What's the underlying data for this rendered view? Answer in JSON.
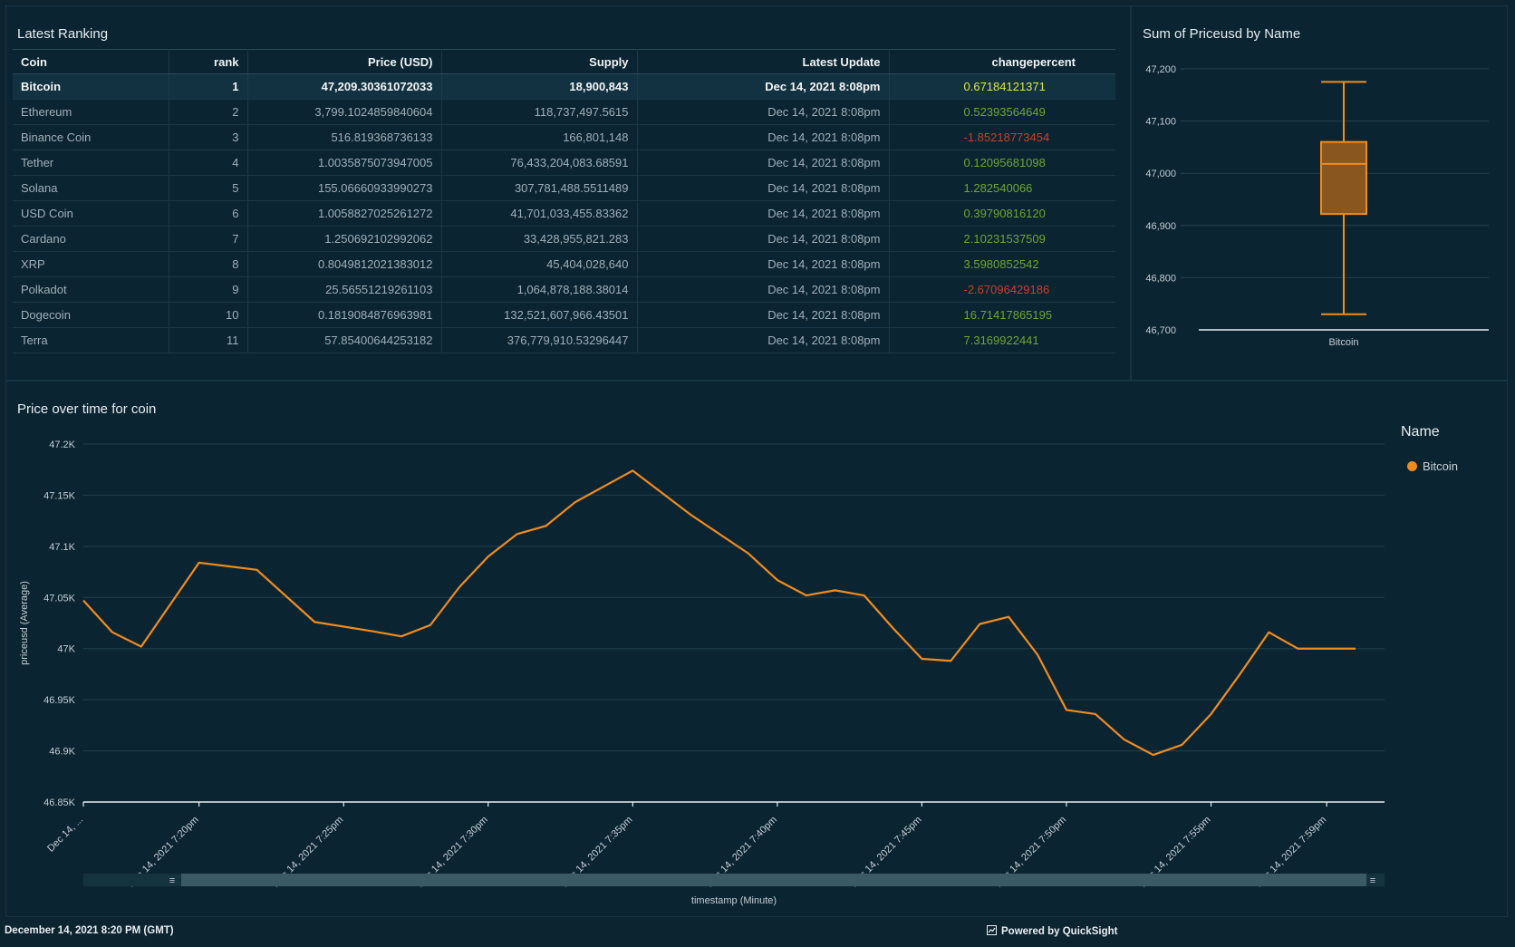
{
  "colors": {
    "accent": "#f08c1e",
    "positive": "#6fa534",
    "negative": "#c7412b",
    "highlight": "#d7e83b"
  },
  "table_panel": {
    "title": "Latest Ranking",
    "columns": [
      "Coin",
      "rank",
      "Price (USD)",
      "Supply",
      "Latest Update",
      "changepercent"
    ],
    "rows": [
      {
        "coin": "Bitcoin",
        "rank": "1",
        "price": "47,209.30361072033",
        "supply": "18,900,843",
        "updated": "Dec 14, 2021 8:08pm",
        "change": "0.67184121371",
        "dir": "pos"
      },
      {
        "coin": "Ethereum",
        "rank": "2",
        "price": "3,799.1024859840604",
        "supply": "118,737,497.5615",
        "updated": "Dec 14, 2021 8:08pm",
        "change": "0.52393564649",
        "dir": "pos"
      },
      {
        "coin": "Binance Coin",
        "rank": "3",
        "price": "516.819368736133",
        "supply": "166,801,148",
        "updated": "Dec 14, 2021 8:08pm",
        "change": "-1.85218773454",
        "dir": "neg"
      },
      {
        "coin": "Tether",
        "rank": "4",
        "price": "1.0035875073947005",
        "supply": "76,433,204,083.68591",
        "updated": "Dec 14, 2021 8:08pm",
        "change": "0.12095681098",
        "dir": "pos"
      },
      {
        "coin": "Solana",
        "rank": "5",
        "price": "155.06660933990273",
        "supply": "307,781,488.5511489",
        "updated": "Dec 14, 2021 8:08pm",
        "change": "1.282540066",
        "dir": "pos"
      },
      {
        "coin": "USD Coin",
        "rank": "6",
        "price": "1.0058827025261272",
        "supply": "41,701,033,455.83362",
        "updated": "Dec 14, 2021 8:08pm",
        "change": "0.39790816120",
        "dir": "pos"
      },
      {
        "coin": "Cardano",
        "rank": "7",
        "price": "1.250692102992062",
        "supply": "33,428,955,821.283",
        "updated": "Dec 14, 2021 8:08pm",
        "change": "2.10231537509",
        "dir": "pos"
      },
      {
        "coin": "XRP",
        "rank": "8",
        "price": "0.8049812021383012",
        "supply": "45,404,028,640",
        "updated": "Dec 14, 2021 8:08pm",
        "change": "3.5980852542",
        "dir": "pos"
      },
      {
        "coin": "Polkadot",
        "rank": "9",
        "price": "25.56551219261103",
        "supply": "1,064,878,188.38014",
        "updated": "Dec 14, 2021 8:08pm",
        "change": "-2.67096429186",
        "dir": "neg"
      },
      {
        "coin": "Dogecoin",
        "rank": "10",
        "price": "0.1819084876963981",
        "supply": "132,521,607,966.43501",
        "updated": "Dec 14, 2021 8:08pm",
        "change": "16.71417865195",
        "dir": "pos"
      },
      {
        "coin": "Terra",
        "rank": "11",
        "price": "57.85400644253182",
        "supply": "376,779,910.53296447",
        "updated": "Dec 14, 2021 8:08pm",
        "change": "7.3169922441",
        "dir": "pos"
      }
    ]
  },
  "box_panel": {
    "title": "Sum of Priceusd by Name"
  },
  "line_panel": {
    "title": "Price over time for coin"
  },
  "legend": {
    "title": "Name",
    "item": "Bitcoin"
  },
  "footer": {
    "timestamp": "December 14, 2021 8:20 PM (GMT)",
    "powered_by": "Powered by QuickSight"
  },
  "chart_data": [
    {
      "type": "box",
      "title": "Sum of Priceusd by Name",
      "categories": [
        "Bitcoin"
      ],
      "min": 46730,
      "q1": 46922,
      "median": 47018,
      "q3": 47060,
      "max": 47175,
      "ylim": [
        46700,
        47200
      ],
      "yticks": [
        46700,
        46800,
        46900,
        47000,
        47100,
        47200
      ],
      "ytick_labels": [
        "46,700",
        "46,800",
        "46,900",
        "47,000",
        "47,100",
        "47,200"
      ],
      "grid": true
    },
    {
      "type": "line",
      "title": "Price over time for coin",
      "xlabel": "timestamp (Minute)",
      "ylabel": "priceusd (Average)",
      "ylim": [
        46850,
        47200
      ],
      "yticks": [
        46850,
        46900,
        46950,
        47000,
        47050,
        47100,
        47150,
        47200
      ],
      "ytick_labels": [
        "46.85K",
        "46.9K",
        "46.95K",
        "47K",
        "47.05K",
        "47.1K",
        "47.15K",
        "47.2K"
      ],
      "xlim": [
        "7:16pm",
        "7:61pm"
      ],
      "xticks": [
        {
          "t": "7:16pm",
          "label": "Dec 14, ..."
        },
        {
          "t": "7:20pm",
          "label": "Dec 14, 2021 7:20pm"
        },
        {
          "t": "7:25pm",
          "label": "Dec 14, 2021 7:25pm"
        },
        {
          "t": "7:30pm",
          "label": "Dec 14, 2021 7:30pm"
        },
        {
          "t": "7:35pm",
          "label": "Dec 14, 2021 7:35pm"
        },
        {
          "t": "7:40pm",
          "label": "Dec 14, 2021 7:40pm"
        },
        {
          "t": "7:45pm",
          "label": "Dec 14, 2021 7:45pm"
        },
        {
          "t": "7:50pm",
          "label": "Dec 14, 2021 7:50pm"
        },
        {
          "t": "7:55pm",
          "label": "Dec 14, 2021 7:55pm"
        },
        {
          "t": "7:59pm",
          "label": "Dec 14, 2021 7:59pm"
        }
      ],
      "series": [
        {
          "name": "Bitcoin",
          "x": [
            "7:16pm",
            "7:17pm",
            "7:18pm",
            "7:20pm",
            "7:22pm",
            "7:24pm",
            "7:26pm",
            "7:27pm",
            "7:28pm",
            "7:29pm",
            "7:30pm",
            "7:31pm",
            "7:32pm",
            "7:33pm",
            "7:35pm",
            "7:37pm",
            "7:39pm",
            "7:40pm",
            "7:41pm",
            "7:42pm",
            "7:43pm",
            "7:44pm",
            "7:45pm",
            "7:46pm",
            "7:47pm",
            "7:48pm",
            "7:49pm",
            "7:50pm",
            "7:51pm",
            "7:52pm",
            "7:53pm",
            "7:54pm",
            "7:55pm",
            "7:56pm",
            "7:57pm",
            "7:58pm",
            "7:59pm",
            "7:60pm"
          ],
          "y": [
            47047,
            47016,
            47002,
            47084,
            47077,
            47026,
            47017,
            47012,
            47023,
            47060,
            47090,
            47112,
            47120,
            47143,
            47174,
            47131,
            47093,
            47067,
            47052,
            47057,
            47052,
            47020,
            46990,
            46988,
            47024,
            47031,
            46994,
            46940,
            46936,
            46911,
            46896,
            46906,
            46936,
            46975,
            47016,
            47000,
            47000,
            47000
          ]
        }
      ],
      "legend": "right",
      "grid": true
    }
  ]
}
